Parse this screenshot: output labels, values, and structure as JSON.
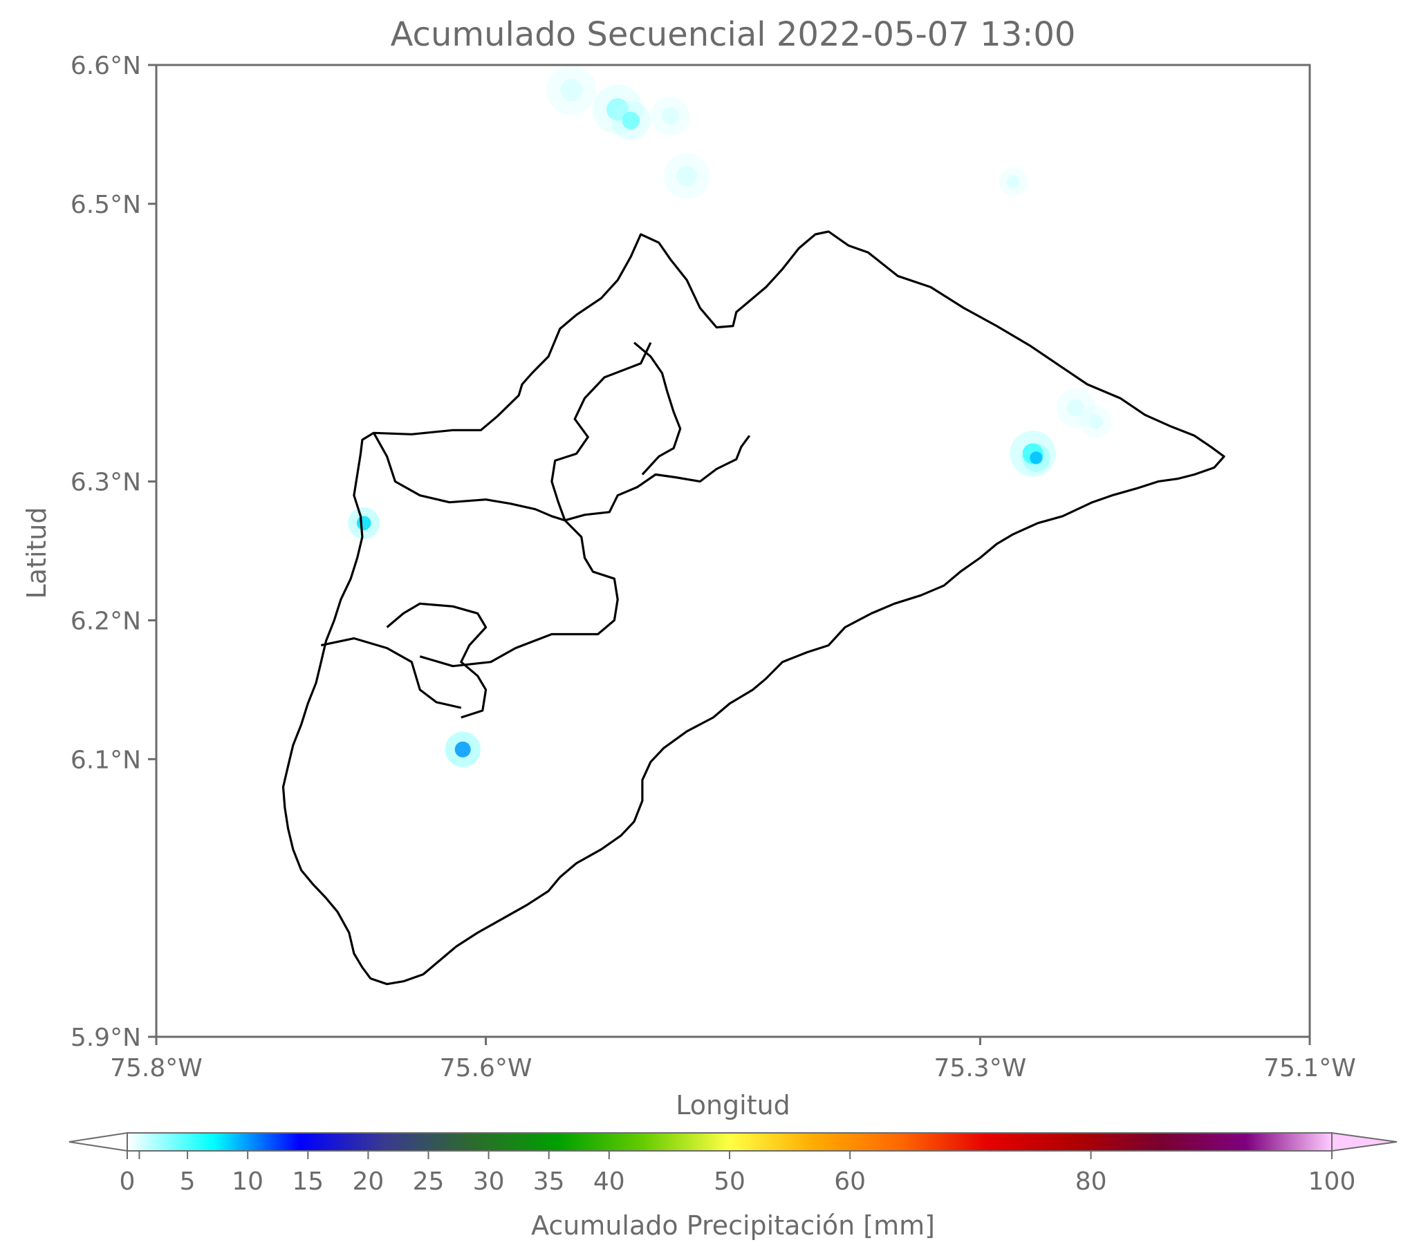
{
  "title": "Acumulado Secuencial 2022-05-07 13:00",
  "map": {
    "xlabel": "Longitud",
    "ylabel": "Latitud",
    "lon_range": [
      -75.8,
      -75.1
    ],
    "lat_range": [
      5.9,
      6.6
    ],
    "x_ticks": [
      {
        "value": -75.8,
        "label": "75.8°W"
      },
      {
        "value": -75.6,
        "label": "75.6°W"
      },
      {
        "value": -75.3,
        "label": "75.3°W"
      },
      {
        "value": -75.1,
        "label": "75.1°W"
      }
    ],
    "y_ticks": [
      {
        "value": 6.6,
        "label": "6.6°N"
      },
      {
        "value": 6.5,
        "label": "6.5°N"
      },
      {
        "value": 6.3,
        "label": "6.3°N"
      },
      {
        "value": 6.2,
        "label": "6.2°N"
      },
      {
        "value": 6.1,
        "label": "6.1°N"
      },
      {
        "value": 5.9,
        "label": "5.9°N"
      }
    ],
    "boundary_color": "#000000",
    "precipitation_cells": [
      {
        "lon": -75.52,
        "lat": 6.568,
        "mm": 3,
        "spread": 1.0
      },
      {
        "lon": -75.512,
        "lat": 6.56,
        "mm": 4,
        "spread": 0.7
      },
      {
        "lon": -75.548,
        "lat": 6.582,
        "mm": 1,
        "spread": 1.0
      },
      {
        "lon": -75.488,
        "lat": 6.563,
        "mm": 1,
        "spread": 0.7
      },
      {
        "lon": -75.478,
        "lat": 6.52,
        "mm": 1,
        "spread": 0.9
      },
      {
        "lon": -75.268,
        "lat": 6.32,
        "mm": 6,
        "spread": 0.9
      },
      {
        "lon": -75.266,
        "lat": 6.317,
        "mm": 9,
        "spread": 0.4
      },
      {
        "lon": -75.242,
        "lat": 6.353,
        "mm": 1,
        "spread": 0.7
      },
      {
        "lon": -75.23,
        "lat": 6.343,
        "mm": 1,
        "spread": 0.5
      },
      {
        "lon": -75.674,
        "lat": 6.27,
        "mm": 8,
        "spread": 0.5
      },
      {
        "lon": -75.614,
        "lat": 6.107,
        "mm": 10,
        "spread": 0.6
      },
      {
        "lon": -75.28,
        "lat": 6.516,
        "mm": 1,
        "spread": 0.4
      }
    ],
    "boundaries": [
      [
        [
          -75.675,
          6.33
        ],
        [
          -75.668,
          6.335
        ],
        [
          -75.645,
          6.334
        ],
        [
          -75.62,
          6.337
        ],
        [
          -75.603,
          6.337
        ],
        [
          -75.593,
          6.347
        ],
        [
          -75.58,
          6.362
        ],
        [
          -75.578,
          6.37
        ],
        [
          -75.572,
          6.378
        ],
        [
          -75.562,
          6.39
        ],
        [
          -75.555,
          6.41
        ],
        [
          -75.545,
          6.42
        ],
        [
          -75.53,
          6.432
        ],
        [
          -75.52,
          6.445
        ],
        [
          -75.512,
          6.462
        ],
        [
          -75.506,
          6.478
        ],
        [
          -75.495,
          6.472
        ],
        [
          -75.488,
          6.46
        ],
        [
          -75.478,
          6.445
        ],
        [
          -75.47,
          6.425
        ],
        [
          -75.46,
          6.411
        ],
        [
          -75.45,
          6.412
        ],
        [
          -75.448,
          6.422
        ],
        [
          -75.442,
          6.428
        ],
        [
          -75.43,
          6.44
        ],
        [
          -75.42,
          6.453
        ],
        [
          -75.41,
          6.468
        ],
        [
          -75.4,
          6.478
        ],
        [
          -75.392,
          6.48
        ],
        [
          -75.38,
          6.47
        ],
        [
          -75.368,
          6.465
        ],
        [
          -75.35,
          6.448
        ],
        [
          -75.33,
          6.44
        ],
        [
          -75.31,
          6.425
        ],
        [
          -75.29,
          6.412
        ],
        [
          -75.27,
          6.398
        ],
        [
          -75.25,
          6.382
        ],
        [
          -75.235,
          6.37
        ],
        [
          -75.215,
          6.36
        ],
        [
          -75.2,
          6.348
        ],
        [
          -75.185,
          6.34
        ],
        [
          -75.17,
          6.333
        ],
        [
          -75.16,
          6.325
        ],
        [
          -75.152,
          6.318
        ],
        [
          -75.158,
          6.31
        ],
        [
          -75.17,
          6.305
        ],
        [
          -75.18,
          6.302
        ],
        [
          -75.192,
          6.3
        ],
        [
          -75.205,
          6.295
        ],
        [
          -75.22,
          6.29
        ],
        [
          -75.232,
          6.285
        ],
        [
          -75.25,
          6.275
        ],
        [
          -75.265,
          6.27
        ],
        [
          -75.28,
          6.262
        ],
        [
          -75.29,
          6.255
        ],
        [
          -75.3,
          6.245
        ],
        [
          -75.312,
          6.235
        ],
        [
          -75.322,
          6.225
        ],
        [
          -75.336,
          6.218
        ],
        [
          -75.352,
          6.212
        ],
        [
          -75.366,
          6.205
        ],
        [
          -75.382,
          6.195
        ],
        [
          -75.392,
          6.182
        ],
        [
          -75.405,
          6.177
        ],
        [
          -75.42,
          6.17
        ],
        [
          -75.43,
          6.158
        ],
        [
          -75.438,
          6.15
        ],
        [
          -75.452,
          6.14
        ],
        [
          -75.462,
          6.13
        ],
        [
          -75.478,
          6.12
        ],
        [
          -75.492,
          6.108
        ],
        [
          -75.5,
          6.098
        ],
        [
          -75.505,
          6.085
        ],
        [
          -75.505,
          6.07
        ],
        [
          -75.51,
          6.055
        ],
        [
          -75.518,
          6.045
        ],
        [
          -75.53,
          6.035
        ],
        [
          -75.545,
          6.025
        ],
        [
          -75.555,
          6.015
        ],
        [
          -75.562,
          6.005
        ],
        [
          -75.575,
          5.995
        ],
        [
          -75.59,
          5.985
        ],
        [
          -75.605,
          5.975
        ],
        [
          -75.618,
          5.965
        ],
        [
          -75.628,
          5.955
        ],
        [
          -75.638,
          5.945
        ],
        [
          -75.65,
          5.94
        ],
        [
          -75.66,
          5.938
        ],
        [
          -75.67,
          5.942
        ],
        [
          -75.675,
          5.95
        ],
        [
          -75.68,
          5.96
        ],
        [
          -75.683,
          5.975
        ],
        [
          -75.69,
          5.99
        ],
        [
          -75.697,
          6.0
        ],
        [
          -75.705,
          6.01
        ],
        [
          -75.712,
          6.02
        ],
        [
          -75.717,
          6.035
        ],
        [
          -75.72,
          6.05
        ],
        [
          -75.722,
          6.065
        ],
        [
          -75.723,
          6.08
        ],
        [
          -75.72,
          6.095
        ],
        [
          -75.717,
          6.11
        ],
        [
          -75.712,
          6.125
        ],
        [
          -75.708,
          6.14
        ],
        [
          -75.703,
          6.155
        ],
        [
          -75.7,
          6.17
        ],
        [
          -75.697,
          6.185
        ],
        [
          -75.692,
          6.2
        ],
        [
          -75.688,
          6.215
        ],
        [
          -75.682,
          6.23
        ],
        [
          -75.678,
          6.245
        ],
        [
          -75.675,
          6.26
        ],
        [
          -75.676,
          6.275
        ],
        [
          -75.68,
          6.29
        ],
        [
          -75.678,
          6.305
        ],
        [
          -75.676,
          6.32
        ],
        [
          -75.675,
          6.33
        ]
      ]
    ]
  },
  "colorbar": {
    "label": "Acumulado Precipitación [mm]",
    "min": 0,
    "max": 100,
    "ticks": [
      "0",
      "5",
      "10",
      "15",
      "20",
      "25",
      "30",
      "35",
      "40",
      "50",
      "60",
      "80",
      "100"
    ],
    "tick_values": [
      0,
      1,
      5,
      10,
      15,
      20,
      25,
      30,
      35,
      40,
      50,
      60,
      80,
      100
    ],
    "colors": [
      "#ffffff",
      "#00ffff",
      "#0000ff",
      "#3a3a8f",
      "#2d6a2d",
      "#00a000",
      "#66cc00",
      "#ffff44",
      "#ffaa00",
      "#ff6600",
      "#e60000",
      "#b00000",
      "#7a0030",
      "#7f007f",
      "#ffccff"
    ]
  }
}
